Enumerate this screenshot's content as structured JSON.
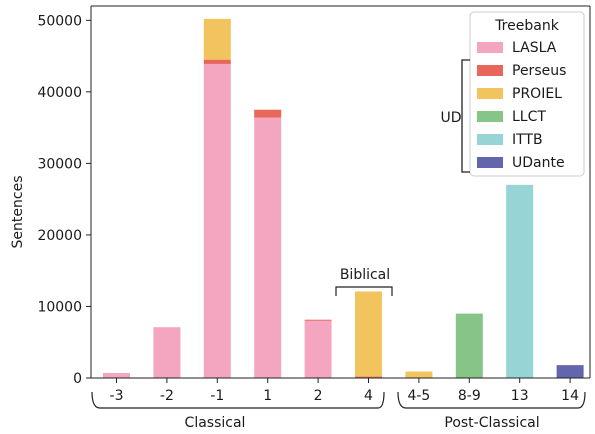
{
  "chart_data": {
    "type": "bar",
    "stacked": true,
    "categories": [
      "-3",
      "-2",
      "-1",
      "1",
      "2",
      "4",
      "4-5",
      "8-9",
      "13",
      "14"
    ],
    "ylabel": "Sentences",
    "ylim": [
      0,
      52000
    ],
    "yticks": [
      0,
      10000,
      20000,
      30000,
      40000,
      50000
    ],
    "grid": false,
    "legend": {
      "title": "Treebank",
      "placement": "top-right"
    },
    "series": [
      {
        "name": "LASLA",
        "color": "#f4a6c0",
        "values": [
          700,
          7100,
          43900,
          36400,
          8000,
          0,
          0,
          0,
          0,
          0
        ]
      },
      {
        "name": "Perseus",
        "color": "#e8675b",
        "values": [
          0,
          0,
          600,
          1100,
          150,
          200,
          0,
          0,
          0,
          0
        ]
      },
      {
        "name": "PROIEL",
        "color": "#f2c45e",
        "values": [
          0,
          0,
          5700,
          0,
          0,
          11900,
          900,
          0,
          0,
          0
        ]
      },
      {
        "name": "LLCT",
        "color": "#86c487",
        "values": [
          0,
          0,
          0,
          0,
          0,
          0,
          0,
          9000,
          0,
          0
        ]
      },
      {
        "name": "ITTB",
        "color": "#96d4d6",
        "values": [
          0,
          0,
          0,
          0,
          0,
          0,
          0,
          0,
          27000,
          0
        ]
      },
      {
        "name": "UDante",
        "color": "#6466ad",
        "values": [
          0,
          0,
          0,
          0,
          0,
          0,
          0,
          0,
          0,
          1800
        ]
      }
    ],
    "annotations": {
      "ud_bracket_label": "UD",
      "biblical_label": "Biblical",
      "classical_label": "Classical",
      "post_classical_label": "Post-Classical"
    }
  }
}
